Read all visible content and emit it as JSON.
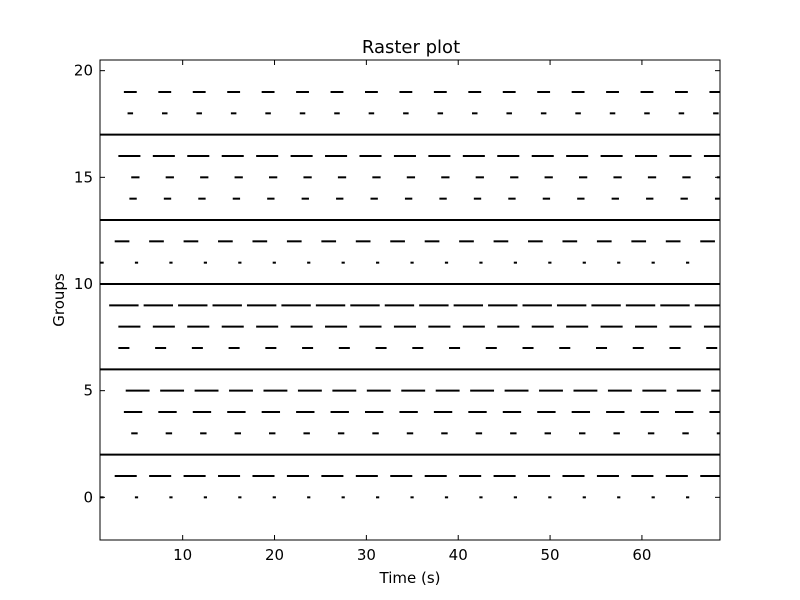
{
  "chart_data": {
    "type": "raster",
    "title": "Raster plot",
    "xlabel": "Time (s)",
    "ylabel": "Groups",
    "xlim": [
      1,
      68.5
    ],
    "ylim": [
      -2,
      20.5
    ],
    "xticks": [
      10,
      20,
      30,
      40,
      50,
      60
    ],
    "yticks": [
      0,
      5,
      10,
      15,
      20
    ],
    "grid": false,
    "color": "#000000",
    "rows": [
      {
        "group": 0,
        "period": 3.75,
        "duration": 0.35,
        "phase": 4.8
      },
      {
        "group": 1,
        "period": 3.75,
        "duration": 2.4,
        "phase": 2.6
      },
      {
        "group": 2,
        "continuous": true
      },
      {
        "group": 3,
        "period": 3.75,
        "duration": 0.7,
        "phase": 4.4
      },
      {
        "group": 4,
        "period": 3.75,
        "duration": 2.0,
        "phase": 3.6
      },
      {
        "group": 5,
        "period": 3.75,
        "duration": 2.6,
        "phase": 3.8
      },
      {
        "group": 6,
        "continuous": true
      },
      {
        "group": 7,
        "period": 4.0,
        "duration": 1.2,
        "phase": 3.0
      },
      {
        "group": 8,
        "period": 3.75,
        "duration": 2.4,
        "phase": 3.0
      },
      {
        "group": 9,
        "period": 3.75,
        "duration": 3.2,
        "phase": 2.0
      },
      {
        "group": 10,
        "continuous": true
      },
      {
        "group": 11,
        "period": 3.75,
        "duration": 0.35,
        "phase": 4.8
      },
      {
        "group": 12,
        "period": 3.75,
        "duration": 1.6,
        "phase": 2.6
      },
      {
        "group": 13,
        "continuous": true
      },
      {
        "group": 14,
        "period": 3.75,
        "duration": 0.8,
        "phase": 4.2
      },
      {
        "group": 15,
        "period": 3.75,
        "duration": 0.9,
        "phase": 4.4
      },
      {
        "group": 16,
        "period": 3.75,
        "duration": 2.4,
        "phase": 3.0
      },
      {
        "group": 17,
        "continuous": true
      },
      {
        "group": 18,
        "period": 3.75,
        "duration": 0.6,
        "phase": 4.0
      },
      {
        "group": 19,
        "period": 3.75,
        "duration": 1.4,
        "phase": 3.6
      }
    ]
  }
}
